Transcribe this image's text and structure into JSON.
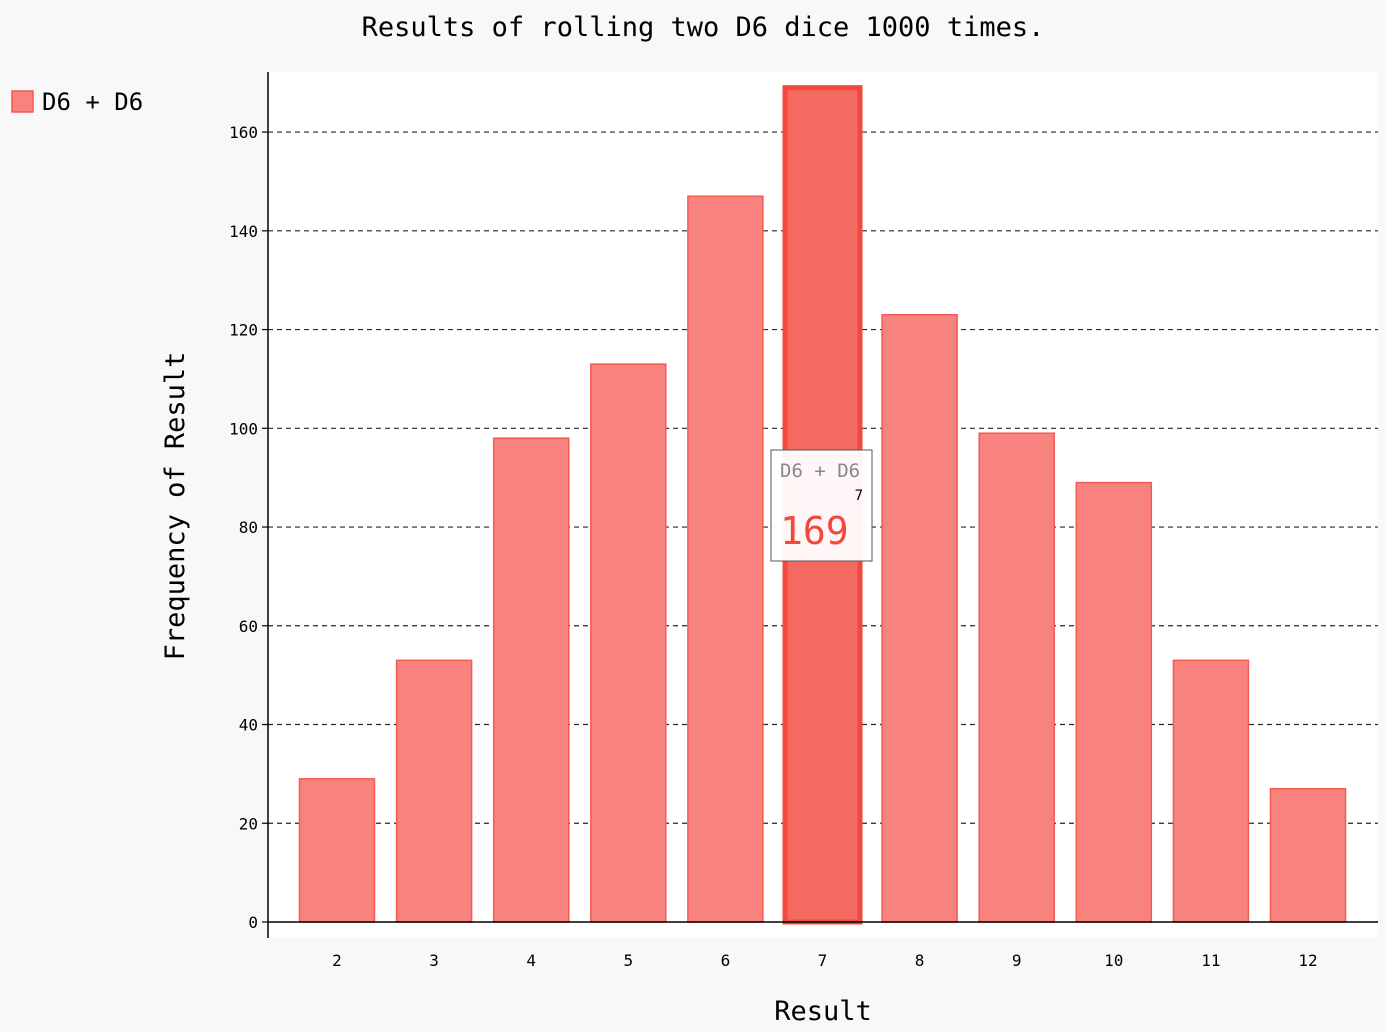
{
  "chart_data": {
    "type": "bar",
    "title": "Results of rolling two D6 dice 1000 times.",
    "xlabel": "Result",
    "ylabel": "Frequency of Result",
    "categories": [
      "2",
      "3",
      "4",
      "5",
      "6",
      "7",
      "8",
      "9",
      "10",
      "11",
      "12"
    ],
    "series": [
      {
        "name": "D6 + D6",
        "values": [
          29,
          53,
          98,
          113,
          147,
          169,
          123,
          99,
          89,
          53,
          27
        ]
      }
    ],
    "ylim": [
      0,
      172
    ],
    "yticks": [
      "0",
      "20",
      "40",
      "60",
      "80",
      "100",
      "120",
      "140",
      "160"
    ],
    "grid": true,
    "legend": "top-left",
    "colors": {
      "bar": "#f8827e",
      "bar_stroke": "#f35a52",
      "highlight": "#f46a60",
      "highlight_stroke": "#f2493f",
      "value_text": "#f2493f"
    },
    "tooltip": {
      "series": "D6 + D6",
      "category": "7",
      "value": "169",
      "highlight_index": 5
    }
  }
}
